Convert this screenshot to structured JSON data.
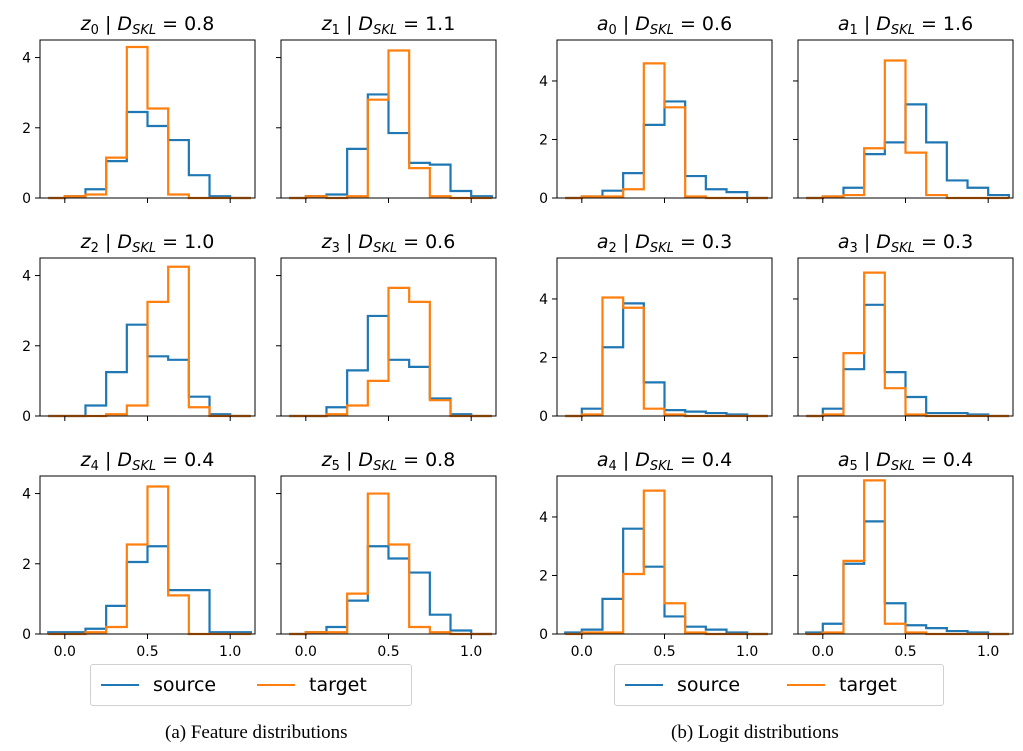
{
  "colors": {
    "source": "#1f77b4",
    "target": "#ff7f0e"
  },
  "legend": {
    "source_label": "source",
    "target_label": "target"
  },
  "captions": {
    "a": "(a) Feature distributions",
    "b": "(b) Logit distributions"
  },
  "chart_data": [
    {
      "type": "histogram",
      "group": "a",
      "title": {
        "var": "z",
        "sub": "0",
        "value": "0.8"
      },
      "xlim": [
        -0.15,
        1.15
      ],
      "ylim": [
        0,
        4.5
      ],
      "yticks": [
        0,
        2,
        4
      ],
      "xticks": [
        "0.0",
        "0.5",
        "1.0"
      ],
      "bin_edges": [
        -0.1,
        0.0,
        0.125,
        0.25,
        0.375,
        0.5,
        0.625,
        0.75,
        0.875,
        1.0,
        1.125
      ],
      "series": [
        {
          "name": "source",
          "values": [
            0,
            0.05,
            0.25,
            1.05,
            2.45,
            2.05,
            1.65,
            0.65,
            0.05,
            0
          ]
        },
        {
          "name": "target",
          "values": [
            0,
            0.05,
            0.1,
            1.15,
            4.3,
            2.55,
            0.1,
            0,
            0,
            0
          ]
        }
      ]
    },
    {
      "type": "histogram",
      "group": "a",
      "title": {
        "var": "z",
        "sub": "1",
        "value": "1.1"
      },
      "xlim": [
        -0.15,
        1.15
      ],
      "ylim": [
        0,
        4.5
      ],
      "yticks": [
        0,
        2,
        4
      ],
      "xticks": [
        "0.0",
        "0.5",
        "1.0"
      ],
      "bin_edges": [
        -0.1,
        0.0,
        0.125,
        0.25,
        0.375,
        0.5,
        0.625,
        0.75,
        0.875,
        1.0,
        1.125
      ],
      "series": [
        {
          "name": "source",
          "values": [
            0,
            0.05,
            0.1,
            1.4,
            2.95,
            1.85,
            1.0,
            0.95,
            0.2,
            0.05
          ]
        },
        {
          "name": "target",
          "values": [
            0,
            0.05,
            0,
            0.05,
            2.8,
            4.2,
            0.85,
            0.05,
            0,
            0
          ]
        }
      ]
    },
    {
      "type": "histogram",
      "group": "b",
      "title": {
        "var": "a",
        "sub": "0",
        "value": "0.6"
      },
      "xlim": [
        -0.15,
        1.15
      ],
      "ylim": [
        0,
        5.4
      ],
      "yticks": [
        0,
        2,
        4
      ],
      "xticks": [
        "0.0",
        "0.5",
        "1.0"
      ],
      "bin_edges": [
        -0.1,
        0.0,
        0.125,
        0.25,
        0.375,
        0.5,
        0.625,
        0.75,
        0.875,
        1.0,
        1.125
      ],
      "series": [
        {
          "name": "source",
          "values": [
            0,
            0.05,
            0.25,
            0.85,
            2.5,
            3.3,
            0.75,
            0.3,
            0.2,
            0
          ]
        },
        {
          "name": "target",
          "values": [
            0,
            0.05,
            0.05,
            0.3,
            4.6,
            3.1,
            0.05,
            0,
            0,
            0
          ]
        }
      ]
    },
    {
      "type": "histogram",
      "group": "b",
      "title": {
        "var": "a",
        "sub": "1",
        "value": "1.6"
      },
      "xlim": [
        -0.15,
        1.15
      ],
      "ylim": [
        0,
        5.4
      ],
      "yticks": [
        0,
        2,
        4
      ],
      "xticks": [
        "0.0",
        "0.5",
        "1.0"
      ],
      "bin_edges": [
        -0.1,
        0.0,
        0.125,
        0.25,
        0.375,
        0.5,
        0.625,
        0.75,
        0.875,
        1.0,
        1.125
      ],
      "series": [
        {
          "name": "source",
          "values": [
            0,
            0.05,
            0.35,
            1.5,
            1.9,
            3.2,
            1.9,
            0.6,
            0.35,
            0.1
          ]
        },
        {
          "name": "target",
          "values": [
            0,
            0.05,
            0.1,
            1.7,
            4.7,
            1.55,
            0.1,
            0,
            0,
            0
          ]
        }
      ]
    },
    {
      "type": "histogram",
      "group": "a",
      "title": {
        "var": "z",
        "sub": "2",
        "value": "1.0"
      },
      "xlim": [
        -0.15,
        1.15
      ],
      "ylim": [
        0,
        4.5
      ],
      "yticks": [
        0,
        2,
        4
      ],
      "xticks": [
        "0.0",
        "0.5",
        "1.0"
      ],
      "bin_edges": [
        -0.1,
        0.0,
        0.125,
        0.25,
        0.375,
        0.5,
        0.625,
        0.75,
        0.875,
        1.0,
        1.125
      ],
      "series": [
        {
          "name": "source",
          "values": [
            0,
            0,
            0.3,
            1.25,
            2.6,
            1.7,
            1.6,
            0.55,
            0.05,
            0
          ]
        },
        {
          "name": "target",
          "values": [
            0,
            0,
            0,
            0.05,
            0.3,
            3.25,
            4.25,
            0.25,
            0,
            0
          ]
        }
      ]
    },
    {
      "type": "histogram",
      "group": "a",
      "title": {
        "var": "z",
        "sub": "3",
        "value": "0.6"
      },
      "xlim": [
        -0.15,
        1.15
      ],
      "ylim": [
        0,
        4.5
      ],
      "yticks": [
        0,
        2,
        4
      ],
      "xticks": [
        "0.0",
        "0.5",
        "1.0"
      ],
      "bin_edges": [
        -0.1,
        0.0,
        0.125,
        0.25,
        0.375,
        0.5,
        0.625,
        0.75,
        0.875,
        1.0,
        1.125
      ],
      "series": [
        {
          "name": "source",
          "values": [
            0,
            0,
            0.25,
            1.3,
            2.85,
            1.6,
            1.4,
            0.5,
            0.05,
            0
          ]
        },
        {
          "name": "target",
          "values": [
            0,
            0,
            0.05,
            0.3,
            1.0,
            3.65,
            3.25,
            0.45,
            0,
            0
          ]
        }
      ]
    },
    {
      "type": "histogram",
      "group": "b",
      "title": {
        "var": "a",
        "sub": "2",
        "value": "0.3"
      },
      "xlim": [
        -0.15,
        1.15
      ],
      "ylim": [
        0,
        5.4
      ],
      "yticks": [
        0,
        2,
        4
      ],
      "xticks": [
        "0.0",
        "0.5",
        "1.0"
      ],
      "bin_edges": [
        -0.1,
        0.0,
        0.125,
        0.25,
        0.375,
        0.5,
        0.625,
        0.75,
        0.875,
        1.0,
        1.125
      ],
      "series": [
        {
          "name": "source",
          "values": [
            0,
            0.25,
            2.35,
            3.85,
            1.15,
            0.2,
            0.15,
            0.1,
            0.05,
            0
          ]
        },
        {
          "name": "target",
          "values": [
            0,
            0.05,
            4.05,
            3.7,
            0.25,
            0.05,
            0,
            0,
            0,
            0
          ]
        }
      ]
    },
    {
      "type": "histogram",
      "group": "b",
      "title": {
        "var": "a",
        "sub": "3",
        "value": "0.3"
      },
      "xlim": [
        -0.15,
        1.15
      ],
      "ylim": [
        0,
        5.4
      ],
      "yticks": [
        0,
        2,
        4
      ],
      "xticks": [
        "0.0",
        "0.5",
        "1.0"
      ],
      "bin_edges": [
        -0.1,
        0.0,
        0.125,
        0.25,
        0.375,
        0.5,
        0.625,
        0.75,
        0.875,
        1.0,
        1.125
      ],
      "series": [
        {
          "name": "source",
          "values": [
            0,
            0.25,
            1.6,
            3.8,
            1.5,
            0.65,
            0.1,
            0.1,
            0.05,
            0
          ]
        },
        {
          "name": "target",
          "values": [
            0,
            0.05,
            2.15,
            4.9,
            0.95,
            0.05,
            0,
            0,
            0,
            0
          ]
        }
      ]
    },
    {
      "type": "histogram",
      "group": "a",
      "title": {
        "var": "z",
        "sub": "4",
        "value": "0.4"
      },
      "xlim": [
        -0.15,
        1.15
      ],
      "ylim": [
        0,
        4.5
      ],
      "yticks": [
        0,
        2,
        4
      ],
      "xticks": [
        "0.0",
        "0.5",
        "1.0"
      ],
      "bin_edges": [
        -0.1,
        0.0,
        0.125,
        0.25,
        0.375,
        0.5,
        0.625,
        0.75,
        0.875,
        1.0,
        1.125
      ],
      "series": [
        {
          "name": "source",
          "values": [
            0.05,
            0.05,
            0.15,
            0.8,
            2.05,
            2.5,
            1.25,
            1.25,
            0.05,
            0.05
          ]
        },
        {
          "name": "target",
          "values": [
            0,
            0,
            0.05,
            0.2,
            2.55,
            4.2,
            1.1,
            0,
            0,
            0
          ]
        }
      ]
    },
    {
      "type": "histogram",
      "group": "a",
      "title": {
        "var": "z",
        "sub": "5",
        "value": "0.8"
      },
      "xlim": [
        -0.15,
        1.15
      ],
      "ylim": [
        0,
        4.5
      ],
      "yticks": [
        0,
        2,
        4
      ],
      "xticks": [
        "0.0",
        "0.5",
        "1.0"
      ],
      "bin_edges": [
        -0.1,
        0.0,
        0.125,
        0.25,
        0.375,
        0.5,
        0.625,
        0.75,
        0.875,
        1.0,
        1.125
      ],
      "series": [
        {
          "name": "source",
          "values": [
            0,
            0.05,
            0.2,
            0.95,
            2.5,
            2.15,
            1.75,
            0.55,
            0.1,
            0
          ]
        },
        {
          "name": "target",
          "values": [
            0,
            0.05,
            0.05,
            1.15,
            4.0,
            2.55,
            0.2,
            0.05,
            0,
            0
          ]
        }
      ]
    },
    {
      "type": "histogram",
      "group": "b",
      "title": {
        "var": "a",
        "sub": "4",
        "value": "0.4"
      },
      "xlim": [
        -0.15,
        1.15
      ],
      "ylim": [
        0,
        5.4
      ],
      "yticks": [
        0,
        2,
        4
      ],
      "xticks": [
        "0.0",
        "0.5",
        "1.0"
      ],
      "bin_edges": [
        -0.1,
        0.0,
        0.125,
        0.25,
        0.375,
        0.5,
        0.625,
        0.75,
        0.875,
        1.0,
        1.125
      ],
      "series": [
        {
          "name": "source",
          "values": [
            0.05,
            0.15,
            1.2,
            3.6,
            2.3,
            0.6,
            0.25,
            0.15,
            0.05,
            0
          ]
        },
        {
          "name": "target",
          "values": [
            0,
            0.05,
            0.05,
            2.05,
            4.9,
            1.05,
            0.05,
            0,
            0,
            0
          ]
        }
      ]
    },
    {
      "type": "histogram",
      "group": "b",
      "title": {
        "var": "a",
        "sub": "5",
        "value": "0.4"
      },
      "xlim": [
        -0.15,
        1.15
      ],
      "ylim": [
        0,
        5.4
      ],
      "yticks": [
        0,
        2,
        4
      ],
      "xticks": [
        "0.0",
        "0.5",
        "1.0"
      ],
      "bin_edges": [
        -0.1,
        0.0,
        0.125,
        0.25,
        0.375,
        0.5,
        0.625,
        0.75,
        0.875,
        1.0,
        1.125
      ],
      "series": [
        {
          "name": "source",
          "values": [
            0.05,
            0.35,
            2.4,
            3.85,
            1.05,
            0.3,
            0.2,
            0.1,
            0.05,
            0
          ]
        },
        {
          "name": "target",
          "values": [
            0,
            0.05,
            2.5,
            5.25,
            0.35,
            0.05,
            0,
            0,
            0,
            0
          ]
        }
      ]
    }
  ]
}
